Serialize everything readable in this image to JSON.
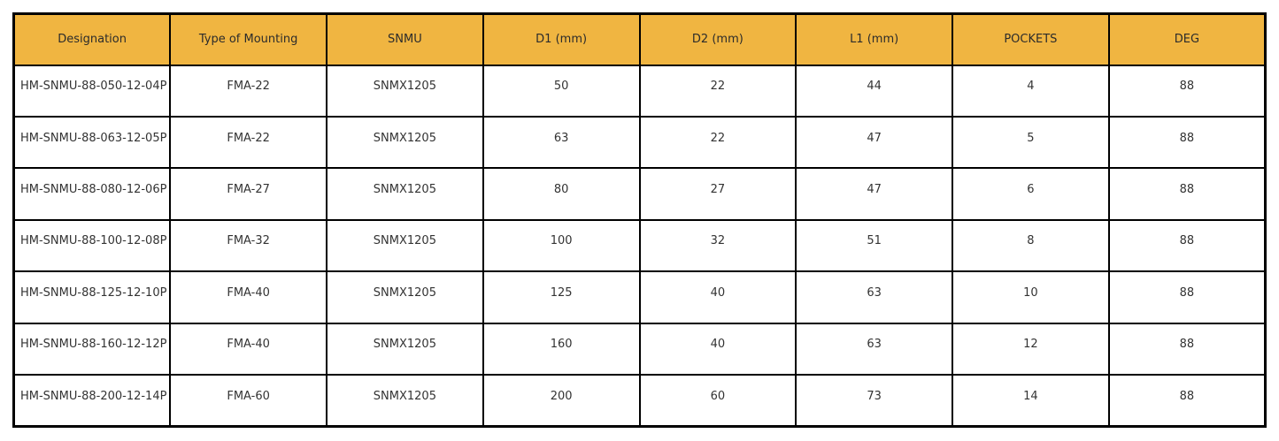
{
  "table": {
    "name": "milling-cutter-spec-table",
    "header_bg_color": "#f0b541",
    "border_color": "#000000",
    "text_color": "#333333",
    "columns": [
      "Designation",
      "Type of Mounting",
      "SNMU",
      "D1 (mm)",
      "D2 (mm)",
      "L1 (mm)",
      "POCKETS",
      "DEG"
    ],
    "rows": [
      [
        "HM-SNMU-88-050-12-04P",
        "FMA-22",
        "SNMX1205",
        "50",
        "22",
        "44",
        "4",
        "88"
      ],
      [
        "HM-SNMU-88-063-12-05P",
        "FMA-22",
        "SNMX1205",
        "63",
        "22",
        "47",
        "5",
        "88"
      ],
      [
        "HM-SNMU-88-080-12-06P",
        "FMA-27",
        "SNMX1205",
        "80",
        "27",
        "47",
        "6",
        "88"
      ],
      [
        "HM-SNMU-88-100-12-08P",
        "FMA-32",
        "SNMX1205",
        "100",
        "32",
        "51",
        "8",
        "88"
      ],
      [
        "HM-SNMU-88-125-12-10P",
        "FMA-40",
        "SNMX1205",
        "125",
        "40",
        "63",
        "10",
        "88"
      ],
      [
        "HM-SNMU-88-160-12-12P",
        "FMA-40",
        "SNMX1205",
        "160",
        "40",
        "63",
        "12",
        "88"
      ],
      [
        "HM-SNMU-88-200-12-14P",
        "FMA-60",
        "SNMX1205",
        "200",
        "60",
        "73",
        "14",
        "88"
      ]
    ]
  }
}
